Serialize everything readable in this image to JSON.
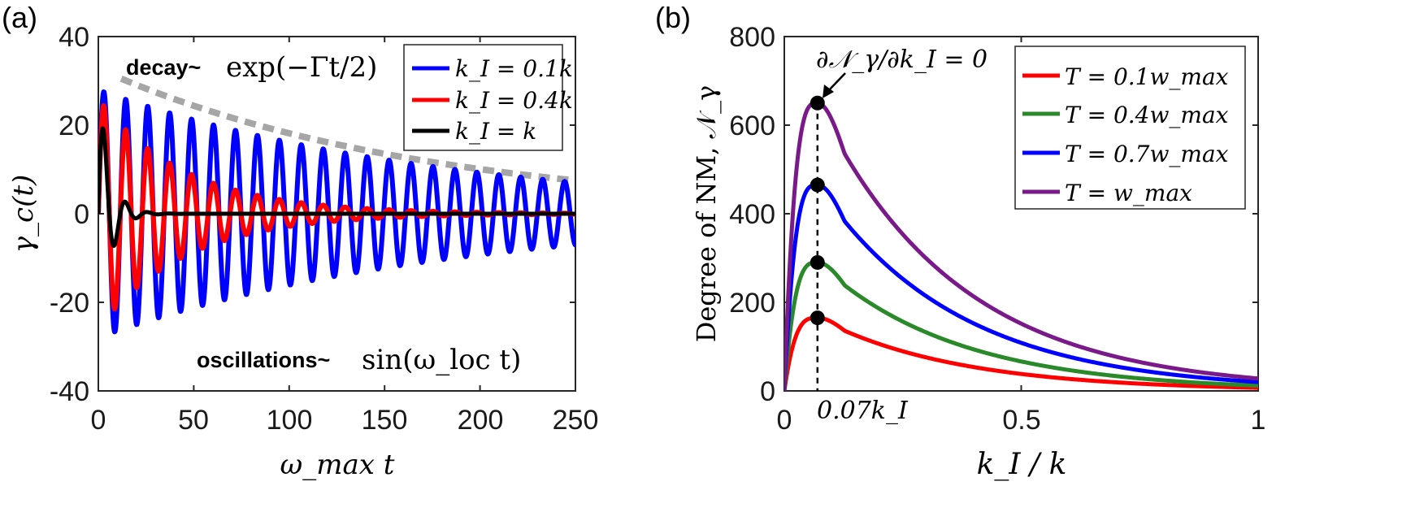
{
  "chart_data": [
    {
      "panel_label": "(a)",
      "type": "line",
      "xlabel": "ω_max t",
      "ylabel": "γ_c(t)",
      "xlim": [
        0,
        250
      ],
      "ylim": [
        -40,
        40
      ],
      "xticks": [
        "0",
        "50",
        "100",
        "150",
        "200",
        "250"
      ],
      "yticks": [
        "40",
        "20",
        "0",
        "-20",
        "-40"
      ],
      "grid": false,
      "legend_position": "top-right",
      "series": [
        {
          "name": "k_I = 0.1k",
          "color": "#0000ff",
          "amplitude": 28,
          "decay_rate": 0.0055,
          "period": 11.5
        },
        {
          "name": "k_I = 0.4k",
          "color": "#ff0000",
          "amplitude": 26,
          "decay_rate": 0.022,
          "period": 11.5
        },
        {
          "name": "k_I = k",
          "color": "#000000",
          "amplitude": 30,
          "decay_rate": 0.17,
          "period": 11.5
        }
      ],
      "envelope": {
        "color": "#a6a6a6",
        "x": [
          12,
          250
        ],
        "y": [
          30.5,
          7.5
        ]
      },
      "annotations": {
        "decay_word": "decay~",
        "decay_formula": "exp(−Γt/2)",
        "osc_word": "oscillations~",
        "osc_formula": "sin(ω_loc t)"
      }
    },
    {
      "panel_label": "(b)",
      "type": "line",
      "xlabel": "k_I / k",
      "ylabel": "Degree of NM, 𝒩_γ",
      "xlim": [
        0,
        1
      ],
      "ylim": [
        0,
        800
      ],
      "xticks": [
        "0",
        "0.5",
        "1"
      ],
      "yticks": [
        "800",
        "600",
        "400",
        "200",
        "0"
      ],
      "grid": false,
      "legend_position": "top-right",
      "peak_x": 0.07,
      "series": [
        {
          "name": "T = 0.1w_max",
          "color": "#ff0000",
          "peak": 165,
          "end": 7
        },
        {
          "name": "T = 0.4w_max",
          "color": "#2a8a2a",
          "peak": 290,
          "end": 12
        },
        {
          "name": "T = 0.7w_max",
          "color": "#0000ff",
          "peak": 465,
          "end": 20
        },
        {
          "name": "T = w_max",
          "color": "#7a1a8a",
          "peak": 650,
          "end": 28
        }
      ],
      "annotations": {
        "derivative": "∂𝒩_γ/∂k_I = 0",
        "peak_label": "0.07k_I"
      }
    }
  ]
}
